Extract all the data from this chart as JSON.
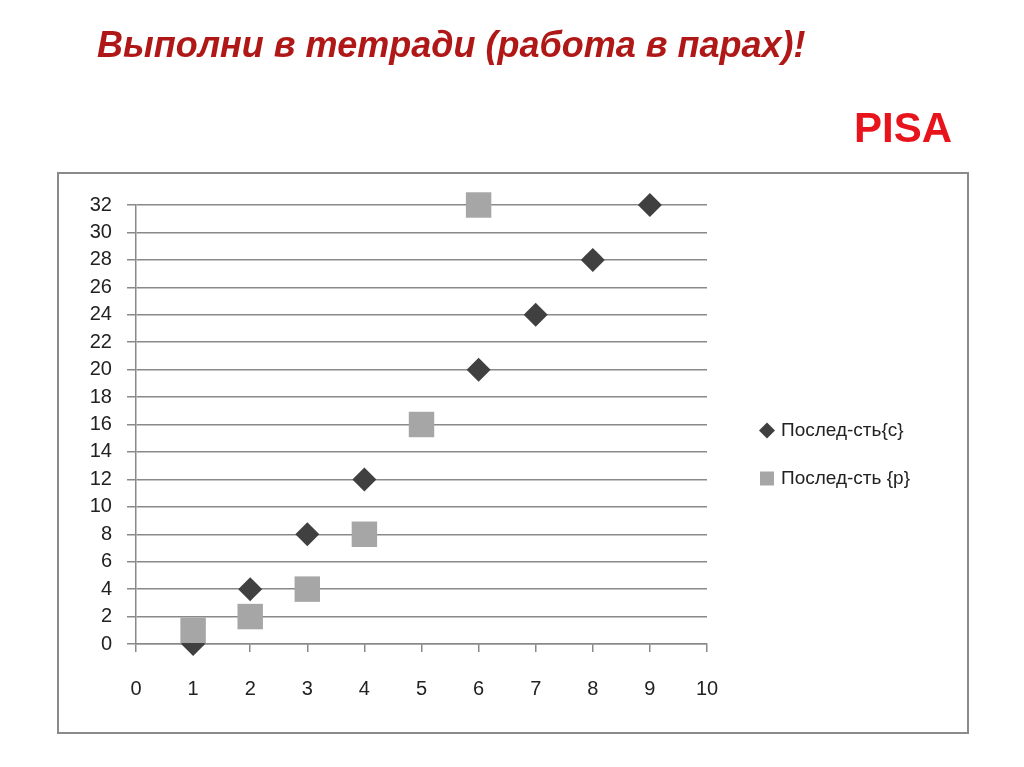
{
  "chart_data": {
    "type": "scatter",
    "title": "Выполни в тетради (работа в парах)!",
    "subtitle": "PISA",
    "xlim": [
      0,
      10
    ],
    "xticks": [
      0,
      1,
      2,
      3,
      4,
      5,
      6,
      7,
      8,
      9,
      10
    ],
    "ylim": [
      0,
      32
    ],
    "yticks": [
      0,
      2,
      4,
      6,
      8,
      10,
      12,
      14,
      16,
      18,
      20,
      22,
      24,
      26,
      28,
      30,
      32
    ],
    "grid": "y",
    "legend": "right",
    "series": [
      {
        "name": "Послед-сть{c}",
        "color": "#404040",
        "marker": "diamond",
        "x": [
          1,
          2,
          3,
          4,
          5,
          6,
          7,
          8,
          9
        ],
        "values": [
          0,
          4,
          8,
          12,
          null,
          20,
          24,
          28,
          32
        ]
      },
      {
        "name": "Послед-сть {p}",
        "color": "#a6a6a6",
        "marker": "square",
        "x": [
          1,
          2,
          3,
          4,
          5,
          6
        ],
        "values": [
          1,
          2,
          4,
          8,
          16,
          32
        ]
      }
    ]
  }
}
